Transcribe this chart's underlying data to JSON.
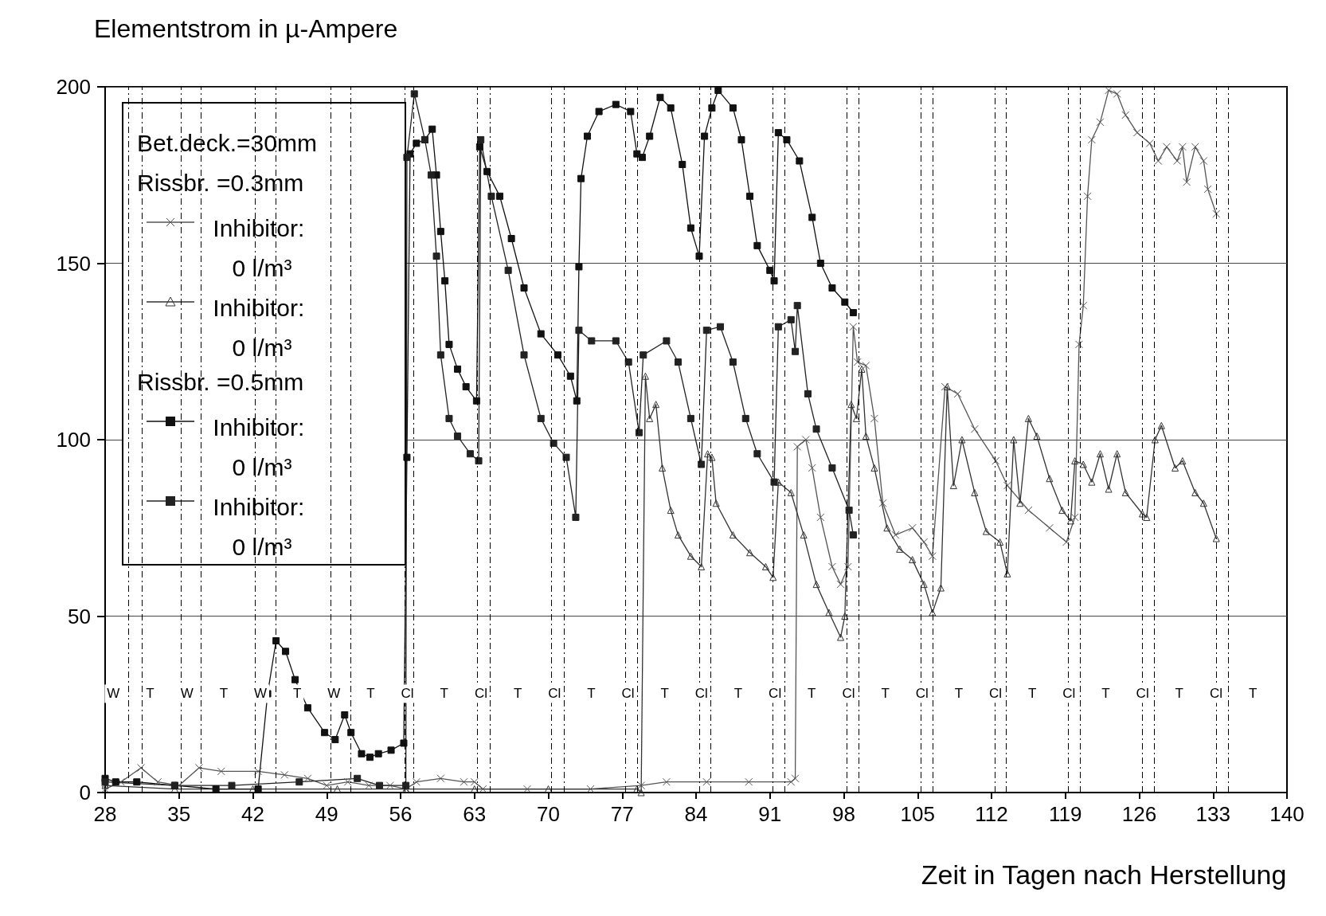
{
  "chart_data": {
    "type": "line",
    "ylabel": "Elementstrom in µ-Ampere",
    "xlabel": "Zeit in Tagen nach Herstellung",
    "legend_title": "Bet.deck.=30mm",
    "legend": "top left",
    "grid": "y",
    "xlim": [
      28,
      140
    ],
    "xticks": [
      28,
      35,
      42,
      49,
      56,
      63,
      70,
      77,
      84,
      91,
      98,
      105,
      112,
      119,
      126,
      133,
      140
    ],
    "ylim": [
      0,
      200
    ],
    "yticks": [
      0,
      50,
      100,
      150,
      200
    ],
    "series": [
      {
        "name": "Inhibitor: 0 l/m³",
        "color": "#555555",
        "marker": "cross",
        "x": [
          28,
          29.5,
          31.4,
          33,
          35,
          36.9,
          39,
          42.5,
          45,
          47.2,
          49,
          51,
          53,
          55,
          56.5,
          57.5,
          59.8,
          62,
          63,
          63.8,
          68,
          74,
          78.8,
          81.2,
          85,
          89,
          93,
          93.4,
          93.6,
          94.4,
          95,
          95.8,
          96.9,
          97.7,
          98.4,
          98.9,
          99.3,
          100.1,
          100.9,
          101.7,
          102.9,
          104.5,
          105.6,
          106.4,
          107.6,
          108.8,
          110.4,
          112.4,
          113.5,
          115.5,
          117.5,
          119.1,
          119.9,
          120.3,
          120.7,
          121.1,
          121.5,
          122.3,
          123.1,
          123.9,
          124.7,
          125.8,
          127,
          127.8,
          128.6,
          129.6,
          130.1,
          130.5,
          131.3,
          132.1,
          132.5,
          133.3
        ],
        "values": [
          1,
          3,
          7,
          3,
          2,
          7,
          6,
          6,
          5,
          4,
          2,
          3,
          2,
          2,
          1,
          3,
          4,
          3,
          3,
          1,
          1,
          1,
          2,
          3,
          3,
          3,
          3,
          4,
          98,
          100,
          92,
          78,
          64,
          59,
          64,
          132,
          122,
          121,
          106,
          82,
          73,
          75,
          71,
          67,
          115,
          113,
          103,
          94,
          87,
          80,
          75,
          71,
          78,
          127,
          138,
          169,
          185,
          190,
          199,
          198,
          192,
          187,
          184,
          179,
          183,
          179,
          183,
          173,
          183,
          179,
          171,
          164
        ]
      },
      {
        "name": "Inhibitor: 0 l/m³",
        "color": "#333333",
        "marker": "triangle",
        "x": [
          28,
          34.6,
          42,
          50,
          56.5,
          63,
          70,
          78.4,
          78.8,
          79.2,
          79.6,
          80.2,
          80.8,
          81.6,
          82.3,
          83.5,
          84.5,
          85.1,
          85.5,
          85.9,
          87.5,
          89.1,
          90.6,
          91.3,
          91.8,
          93,
          94.2,
          95.4,
          96.6,
          97.7,
          98.1,
          98.7,
          99.2,
          99.7,
          100.1,
          100.9,
          102.1,
          103.3,
          104.5,
          105.6,
          106.4,
          107.2,
          107.8,
          108.4,
          109.2,
          110.4,
          111.5,
          112.8,
          113.5,
          114.1,
          114.7,
          115.5,
          116.3,
          117.5,
          118.7,
          119.5,
          119.9,
          120.7,
          121.5,
          122.3,
          123.1,
          123.9,
          124.7,
          126.3,
          126.7,
          127.5,
          128.1,
          129.4,
          130.1,
          131.3,
          132.1,
          133.3
        ],
        "values": [
          2,
          1,
          1,
          1,
          1,
          1,
          1,
          1,
          0,
          118,
          106,
          110,
          92,
          80,
          73,
          67,
          64,
          96,
          95,
          82,
          73,
          68,
          64,
          61,
          88,
          85,
          73,
          59,
          51,
          44,
          50,
          110,
          106,
          120,
          101,
          92,
          75,
          69,
          66,
          59,
          51,
          58,
          115,
          87,
          100,
          85,
          74,
          71,
          62,
          100,
          82,
          106,
          101,
          89,
          80,
          77,
          94,
          93,
          88,
          96,
          86,
          96,
          85,
          79,
          78,
          100,
          104,
          92,
          94,
          85,
          82,
          72
        ]
      },
      {
        "name": "Inhibitor: 0 l/m³",
        "color": "#111111",
        "marker": "square",
        "x": [
          28,
          29,
          31,
          34.6,
          38.5,
          42.5,
          43.4,
          44.2,
          45.1,
          46,
          47.2,
          48.8,
          49.8,
          50.7,
          51.3,
          52.3,
          53.1,
          53.9,
          55.1,
          56.3,
          56.6,
          56.9,
          57.5,
          58.3,
          59,
          59.4,
          59.8,
          60.2,
          60.6,
          61.4,
          62.2,
          63.2,
          63.5,
          64.2,
          65.4,
          66.5,
          67.7,
          69.3,
          70.9,
          72.1,
          72.7,
          72.9,
          73.1,
          73.7,
          74.8,
          76.4,
          77.8,
          78.4,
          78.9,
          79.6,
          80.6,
          81.6,
          82.7,
          83.5,
          84.3,
          84.8,
          85.5,
          86.1,
          87.5,
          88.3,
          89.1,
          89.8,
          91,
          91.4,
          91.8,
          92.6,
          93.8,
          95,
          95.8,
          96.9,
          98.1,
          98.9
        ],
        "values": [
          4,
          3,
          3,
          2,
          1,
          1,
          28,
          43,
          40,
          32,
          24,
          17,
          15,
          22,
          17,
          11,
          10,
          11,
          12,
          14,
          95,
          181,
          184,
          185,
          188,
          175,
          159,
          145,
          127,
          120,
          115,
          111,
          183,
          176,
          169,
          157,
          143,
          130,
          124,
          118,
          111,
          149,
          174,
          186,
          193,
          195,
          193,
          181,
          180,
          186,
          197,
          194,
          178,
          160,
          152,
          186,
          194,
          199,
          194,
          185,
          169,
          155,
          148,
          145,
          187,
          185,
          179,
          163,
          150,
          143,
          139,
          136
        ]
      },
      {
        "name": "Inhibitor: 0 l/m³",
        "color": "#222222",
        "marker": "square",
        "x": [
          28,
          34.6,
          40,
          46.4,
          51.9,
          54,
          56.5,
          56.6,
          57.3,
          58.3,
          58.9,
          59.4,
          59.8,
          60.6,
          61.4,
          62.6,
          63.4,
          63.6,
          64.6,
          66.2,
          67.7,
          69.3,
          70.5,
          71.7,
          72.6,
          72.9,
          74.1,
          76.4,
          77.6,
          78.6,
          79,
          81.2,
          82.3,
          83.5,
          84.5,
          85,
          86.3,
          87.5,
          88.7,
          89.8,
          91.4,
          91.8,
          93,
          93.4,
          93.6,
          94.6,
          95.4,
          96.9,
          98.5,
          98.9
        ],
        "values": [
          3,
          2,
          2,
          3,
          4,
          2,
          2,
          180,
          198,
          185,
          175,
          152,
          124,
          106,
          101,
          96,
          94,
          185,
          169,
          148,
          124,
          106,
          99,
          95,
          78,
          131,
          128,
          128,
          122,
          102,
          124,
          128,
          122,
          106,
          93,
          131,
          132,
          122,
          106,
          96,
          88,
          132,
          134,
          125,
          138,
          113,
          103,
          92,
          80,
          73
        ]
      }
    ],
    "ref_lines": [
      {
        "axis": "x",
        "value": 30.2,
        "line_style": "dashed"
      },
      {
        "axis": "x",
        "value": 31.5,
        "line_style": "dashed"
      },
      {
        "axis": "x",
        "value": 35.2,
        "line_style": "dashed"
      },
      {
        "axis": "x",
        "value": 37.1,
        "line_style": "dashed"
      },
      {
        "axis": "x",
        "value": 42.2,
        "line_style": "dashed"
      },
      {
        "axis": "x",
        "value": 44.2,
        "line_style": "dashed"
      },
      {
        "axis": "x",
        "value": 49.4,
        "line_style": "dashed"
      },
      {
        "axis": "x",
        "value": 51.3,
        "line_style": "dashed"
      },
      {
        "axis": "x",
        "value": 56.4,
        "line_style": "dashed"
      },
      {
        "axis": "x",
        "value": 57.2,
        "line_style": "dashed"
      },
      {
        "axis": "x",
        "value": 63.3,
        "line_style": "dashed"
      },
      {
        "axis": "x",
        "value": 64.5,
        "line_style": "dashed"
      },
      {
        "axis": "x",
        "value": 70.3,
        "line_style": "dashed"
      },
      {
        "axis": "x",
        "value": 71.5,
        "line_style": "dashed"
      },
      {
        "axis": "x",
        "value": 77.3,
        "line_style": "dashed"
      },
      {
        "axis": "x",
        "value": 78.4,
        "line_style": "dashed"
      },
      {
        "axis": "x",
        "value": 84.3,
        "line_style": "dashed"
      },
      {
        "axis": "x",
        "value": 85.4,
        "line_style": "dashed"
      },
      {
        "axis": "x",
        "value": 91.3,
        "line_style": "dashed"
      },
      {
        "axis": "x",
        "value": 92.4,
        "line_style": "dashed"
      },
      {
        "axis": "x",
        "value": 98.3,
        "line_style": "dashed"
      },
      {
        "axis": "x",
        "value": 99.4,
        "line_style": "dashed"
      },
      {
        "axis": "x",
        "value": 105.3,
        "line_style": "dashed"
      },
      {
        "axis": "x",
        "value": 106.4,
        "line_style": "dashed"
      },
      {
        "axis": "x",
        "value": 112.3,
        "line_style": "dashed"
      },
      {
        "axis": "x",
        "value": 113.4,
        "line_style": "dashed"
      },
      {
        "axis": "x",
        "value": 119.3,
        "line_style": "dashed"
      },
      {
        "axis": "x",
        "value": 120.4,
        "line_style": "dashed"
      },
      {
        "axis": "x",
        "value": 126.3,
        "line_style": "dashed"
      },
      {
        "axis": "x",
        "value": 127.4,
        "line_style": "dashed"
      },
      {
        "axis": "x",
        "value": 133.3,
        "line_style": "dashed"
      },
      {
        "axis": "x",
        "value": 134.4,
        "line_style": "dashed"
      }
    ],
    "annotations": [
      "Rissbr. =0.3mm",
      "Rissbr. =0.5mm",
      "W",
      "T",
      "W",
      "T",
      "W",
      "T",
      "W",
      "T",
      "Cl",
      "T",
      "Cl",
      "T",
      "Cl",
      "T",
      "Cl",
      "T",
      "Cl",
      "T",
      "Cl",
      "T",
      "Cl",
      "T",
      "Cl",
      "T",
      "Cl",
      "T",
      "Cl",
      "T",
      "Cl",
      "T",
      "Cl",
      "T"
    ]
  }
}
